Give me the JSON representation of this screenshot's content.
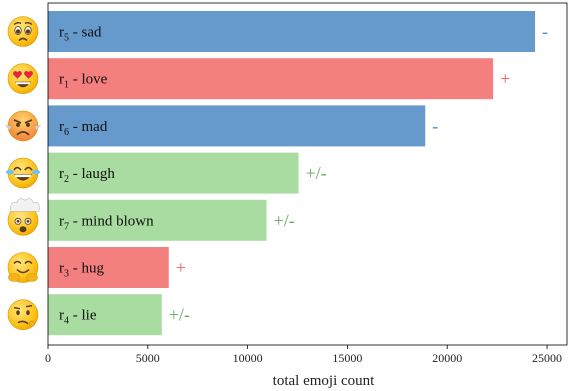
{
  "chart_data": {
    "type": "bar",
    "orientation": "horizontal",
    "title": "",
    "xlabel": "total emoji count",
    "ylabel": "",
    "xlim": [
      0,
      26000
    ],
    "xticks": [
      0,
      5000,
      10000,
      15000,
      20000,
      25000
    ],
    "xtick_labels": [
      "0",
      "5000",
      "10000",
      "15000",
      "20000",
      "25000"
    ],
    "grid": false,
    "legend": "none",
    "colors": {
      "negative": "#6699cc",
      "positive": "#f47f7f",
      "mixed": "#a8dca0"
    },
    "sentiment_colors": {
      "-": "#4a86c5",
      "+": "#ef5b5b",
      "+/-": "#6aa864"
    },
    "bars": [
      {
        "name": "sad",
        "sub": "5",
        "value": 24400,
        "sentiment": "-",
        "color": "#6699cc",
        "emoji": "sad-face"
      },
      {
        "name": "love",
        "sub": "1",
        "value": 22300,
        "sentiment": "+",
        "color": "#f47f7f",
        "emoji": "heart-eyes-face"
      },
      {
        "name": "mad",
        "sub": "6",
        "value": 18900,
        "sentiment": "-",
        "color": "#6699cc",
        "emoji": "angry-face"
      },
      {
        "name": "laugh",
        "sub": "2",
        "value": 12550,
        "sentiment": "+/-",
        "color": "#a8dca0",
        "emoji": "laughing-face"
      },
      {
        "name": "mind blown",
        "sub": "7",
        "value": 10950,
        "sentiment": "+/-",
        "color": "#a8dca0",
        "emoji": "mind-blown-face"
      },
      {
        "name": "hug",
        "sub": "3",
        "value": 6050,
        "sentiment": "+",
        "color": "#f47f7f",
        "emoji": "hugging-face"
      },
      {
        "name": "lie",
        "sub": "4",
        "value": 5700,
        "sentiment": "+/-",
        "color": "#a8dca0",
        "emoji": "confused-face"
      }
    ]
  }
}
